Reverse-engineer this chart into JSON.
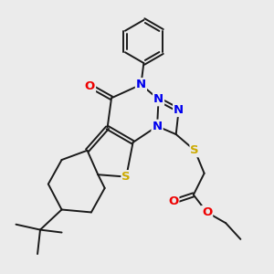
{
  "bg_color": "#ebebeb",
  "bond_color": "#1a1a1a",
  "bond_width": 1.4,
  "atom_colors": {
    "N": "#0000ee",
    "O": "#ee0000",
    "S": "#ccaa00",
    "C": "#1a1a1a"
  },
  "font_size": 8.5
}
